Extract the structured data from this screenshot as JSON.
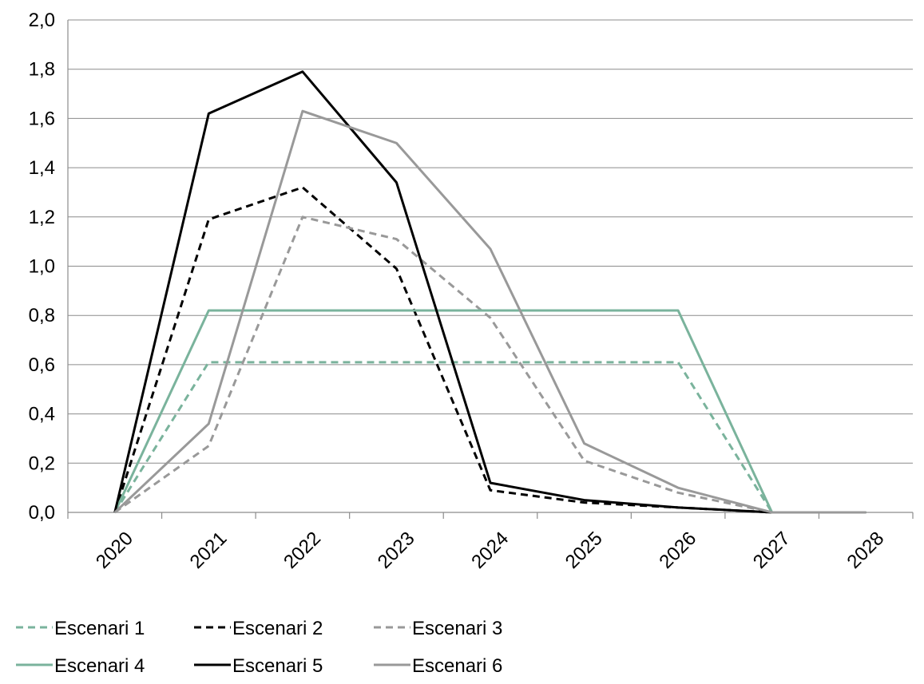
{
  "chart_data": {
    "type": "line",
    "x": [
      "2020",
      "2021",
      "2022",
      "2023",
      "2024",
      "2025",
      "2026",
      "2027",
      "2028"
    ],
    "ylim": [
      0,
      2.0
    ],
    "yticks": [
      "0,0",
      "0,2",
      "0,4",
      "0,6",
      "0,8",
      "1,0",
      "1,2",
      "1,4",
      "1,6",
      "1,8",
      "2,0"
    ],
    "grid": true,
    "legend_position": "bottom",
    "series": [
      {
        "name": "Escenari 1",
        "color": "#7ab39c",
        "dash": true,
        "values": [
          0,
          0.61,
          0.61,
          0.61,
          0.61,
          0.61,
          0.61,
          0,
          0
        ]
      },
      {
        "name": "Escenari 2",
        "color": "#000000",
        "dash": true,
        "values": [
          0,
          1.19,
          1.32,
          0.99,
          0.09,
          0.04,
          0.02,
          0,
          0
        ]
      },
      {
        "name": "Escenari 3",
        "color": "#999999",
        "dash": true,
        "values": [
          0,
          0.27,
          1.2,
          1.11,
          0.79,
          0.21,
          0.08,
          0,
          0
        ]
      },
      {
        "name": "Escenari 4",
        "color": "#7ab39c",
        "dash": false,
        "values": [
          0,
          0.82,
          0.82,
          0.82,
          0.82,
          0.82,
          0.82,
          0,
          0
        ]
      },
      {
        "name": "Escenari 5",
        "color": "#000000",
        "dash": false,
        "values": [
          0,
          1.62,
          1.79,
          1.34,
          0.12,
          0.05,
          0.02,
          0,
          0
        ]
      },
      {
        "name": "Escenari 6",
        "color": "#999999",
        "dash": false,
        "values": [
          0,
          0.36,
          1.63,
          1.5,
          1.07,
          0.28,
          0.1,
          0,
          0
        ]
      }
    ]
  }
}
